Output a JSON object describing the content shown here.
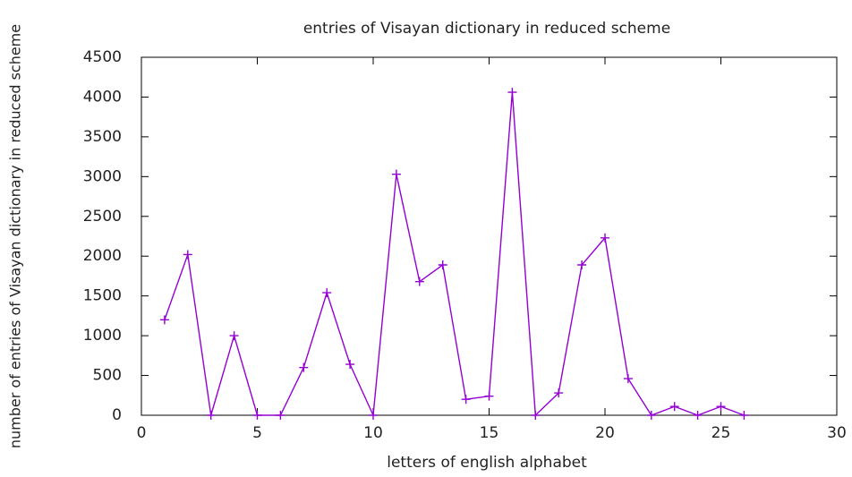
{
  "chart_data": {
    "type": "line",
    "title": "entries of Visayan dictionary in reduced scheme",
    "xlabel": "letters of english alphabet",
    "ylabel": "number of entries of Visayan dictionary in reduced scheme",
    "x": [
      1,
      2,
      3,
      4,
      5,
      6,
      7,
      8,
      9,
      10,
      11,
      12,
      13,
      14,
      15,
      16,
      17,
      18,
      19,
      20,
      21,
      22,
      23,
      24,
      25,
      26
    ],
    "series": [
      {
        "color": "#9400d3",
        "values": [
          1200,
          2020,
          0,
          1000,
          0,
          0,
          600,
          1540,
          640,
          0,
          3030,
          1680,
          1890,
          200,
          240,
          4060,
          0,
          280,
          1890,
          2230,
          460,
          0,
          110,
          0,
          110,
          0
        ]
      }
    ],
    "xlim": [
      0,
      30
    ],
    "xticks": [
      0,
      5,
      10,
      15,
      20,
      25,
      30
    ],
    "ylim": [
      0,
      4500
    ],
    "yticks": [
      0,
      500,
      1000,
      1500,
      2000,
      2500,
      3000,
      3500,
      4000,
      4500
    ],
    "grid": false
  }
}
